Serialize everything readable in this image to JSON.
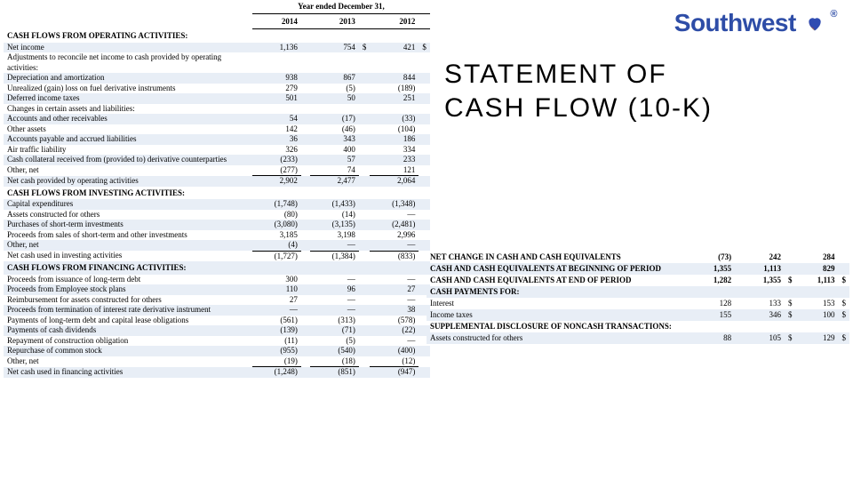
{
  "logo": {
    "text": "Southwest",
    "color": "#2e4da7",
    "heart_fill": "#304cb2",
    "heart_stripe1": "#cc2424",
    "heart_stripe2": "#f9b115"
  },
  "title": {
    "line1": "STATEMENT OF",
    "line2": "CASH FLOW (10-K)"
  },
  "colors": {
    "alt_row": "#e8eef6",
    "text": "#000000",
    "bg": "#ffffff"
  },
  "left": {
    "header_label": "Year ended December 31,",
    "years": [
      "2014",
      "2013",
      "2012"
    ],
    "sections": [
      {
        "title": "CASH FLOWS FROM OPERATING ACTIVITIES:",
        "rows": [
          {
            "label": "Net income",
            "v": [
              "1,136",
              "754",
              "421"
            ],
            "cur": [
              "",
              "$",
              "$"
            ],
            "alt": true
          },
          {
            "label": "Adjustments to reconcile net income to cash provided by operating activities:",
            "v": [
              "",
              "",
              ""
            ],
            "alt": false
          },
          {
            "label": "Depreciation and amortization",
            "v": [
              "938",
              "867",
              "844"
            ],
            "alt": true
          },
          {
            "label": "Unrealized (gain) loss on fuel derivative instruments",
            "v": [
              "279",
              "(5)",
              "(189)"
            ],
            "alt": false
          },
          {
            "label": "Deferred income taxes",
            "v": [
              "501",
              "50",
              "251"
            ],
            "alt": true
          },
          {
            "label": "Changes in certain assets and liabilities:",
            "v": [
              "",
              "",
              ""
            ],
            "alt": false
          },
          {
            "label": "Accounts and other receivables",
            "v": [
              "54",
              "(17)",
              "(33)"
            ],
            "alt": true
          },
          {
            "label": "Other assets",
            "v": [
              "142",
              "(46)",
              "(104)"
            ],
            "alt": false
          },
          {
            "label": "Accounts payable and accrued liabilities",
            "v": [
              "36",
              "343",
              "186"
            ],
            "alt": true
          },
          {
            "label": "Air traffic liability",
            "v": [
              "326",
              "400",
              "334"
            ],
            "alt": false
          },
          {
            "label": "Cash collateral received from (provided to) derivative counterparties",
            "v": [
              "(233)",
              "57",
              "233"
            ],
            "alt": true
          },
          {
            "label": "Other, net",
            "v": [
              "(277)",
              "74",
              "121"
            ],
            "alt": false
          },
          {
            "label": "Net cash provided by operating activities",
            "v": [
              "2,902",
              "2,477",
              "2,064"
            ],
            "alt": true,
            "subtotal": true
          }
        ]
      },
      {
        "title": "CASH FLOWS FROM INVESTING ACTIVITIES:",
        "rows": [
          {
            "label": "Capital expenditures",
            "v": [
              "(1,748)",
              "(1,433)",
              "(1,348)"
            ],
            "alt": true
          },
          {
            "label": "Assets constructed for others",
            "v": [
              "(80)",
              "(14)",
              "—"
            ],
            "alt": false
          },
          {
            "label": "Purchases of short-term investments",
            "v": [
              "(3,080)",
              "(3,135)",
              "(2,481)"
            ],
            "alt": true
          },
          {
            "label": "Proceeds from sales of short-term and other investments",
            "v": [
              "3,185",
              "3,198",
              "2,996"
            ],
            "alt": false
          },
          {
            "label": "Other, net",
            "v": [
              "(4)",
              "—",
              "—"
            ],
            "alt": true
          },
          {
            "label": "Net cash used in investing activities",
            "v": [
              "(1,727)",
              "(1,384)",
              "(833)"
            ],
            "alt": false,
            "subtotal": true
          }
        ]
      },
      {
        "title": "CASH FLOWS FROM FINANCING ACTIVITIES:",
        "title_alt": true,
        "rows": [
          {
            "label": "Proceeds from issuance of long-term debt",
            "v": [
              "300",
              "—",
              "—"
            ],
            "alt": false
          },
          {
            "label": "Proceeds from Employee stock plans",
            "v": [
              "110",
              "96",
              "27"
            ],
            "alt": true
          },
          {
            "label": "Reimbursement for assets constructed for others",
            "v": [
              "27",
              "—",
              "—"
            ],
            "alt": false
          },
          {
            "label": "Proceeds from termination of interest rate derivative instrument",
            "v": [
              "—",
              "—",
              "38"
            ],
            "alt": true
          },
          {
            "label": "Payments of long-term debt and capital lease obligations",
            "v": [
              "(561)",
              "(313)",
              "(578)"
            ],
            "alt": false
          },
          {
            "label": "Payments of cash dividends",
            "v": [
              "(139)",
              "(71)",
              "(22)"
            ],
            "alt": true
          },
          {
            "label": "Repayment of construction obligation",
            "v": [
              "(11)",
              "(5)",
              "—"
            ],
            "alt": false
          },
          {
            "label": "Repurchase of common stock",
            "v": [
              "(955)",
              "(540)",
              "(400)"
            ],
            "alt": true
          },
          {
            "label": "Other, net",
            "v": [
              "(19)",
              "(18)",
              "(12)"
            ],
            "alt": false
          },
          {
            "label": "Net cash used in financing activities",
            "v": [
              "(1,248)",
              "(851)",
              "(947)"
            ],
            "alt": true,
            "subtotal": true
          }
        ]
      }
    ]
  },
  "right": {
    "rows": [
      {
        "label": "NET CHANGE IN CASH AND CASH EQUIVALENTS",
        "v": [
          "(73)",
          "242",
          "284"
        ],
        "cur": [
          "",
          "",
          ""
        ],
        "bold": true,
        "alt": false
      },
      {
        "label": "CASH AND CASH EQUIVALENTS AT BEGINNING OF PERIOD",
        "v": [
          "1,355",
          "1,113",
          "829"
        ],
        "cur": [
          "",
          "",
          ""
        ],
        "bold": true,
        "alt": true
      },
      {
        "label": "CASH AND CASH EQUIVALENTS AT END OF PERIOD",
        "v": [
          "1,282",
          "1,355",
          "1,113"
        ],
        "cur": [
          "",
          "$",
          "$"
        ],
        "bold": true,
        "alt": false
      },
      {
        "label": "CASH PAYMENTS FOR:",
        "v": [
          "",
          "",
          ""
        ],
        "cur": [
          "",
          "",
          ""
        ],
        "bold": true,
        "alt": true
      },
      {
        "label": "Interest",
        "v": [
          "128",
          "133",
          "153"
        ],
        "cur": [
          "",
          "$",
          "$"
        ],
        "bold": false,
        "alt": false
      },
      {
        "label": "Income taxes",
        "v": [
          "155",
          "346",
          "100"
        ],
        "cur": [
          "",
          "$",
          "$"
        ],
        "bold": false,
        "alt": true
      },
      {
        "label": "SUPPLEMENTAL DISCLOSURE OF NONCASH TRANSACTIONS:",
        "v": [
          "",
          "",
          ""
        ],
        "cur": [
          "",
          "",
          ""
        ],
        "bold": true,
        "alt": false
      },
      {
        "label": "Assets constructed for others",
        "v": [
          "88",
          "105",
          "129"
        ],
        "cur": [
          "",
          "$",
          "$"
        ],
        "bold": false,
        "alt": true
      }
    ]
  }
}
